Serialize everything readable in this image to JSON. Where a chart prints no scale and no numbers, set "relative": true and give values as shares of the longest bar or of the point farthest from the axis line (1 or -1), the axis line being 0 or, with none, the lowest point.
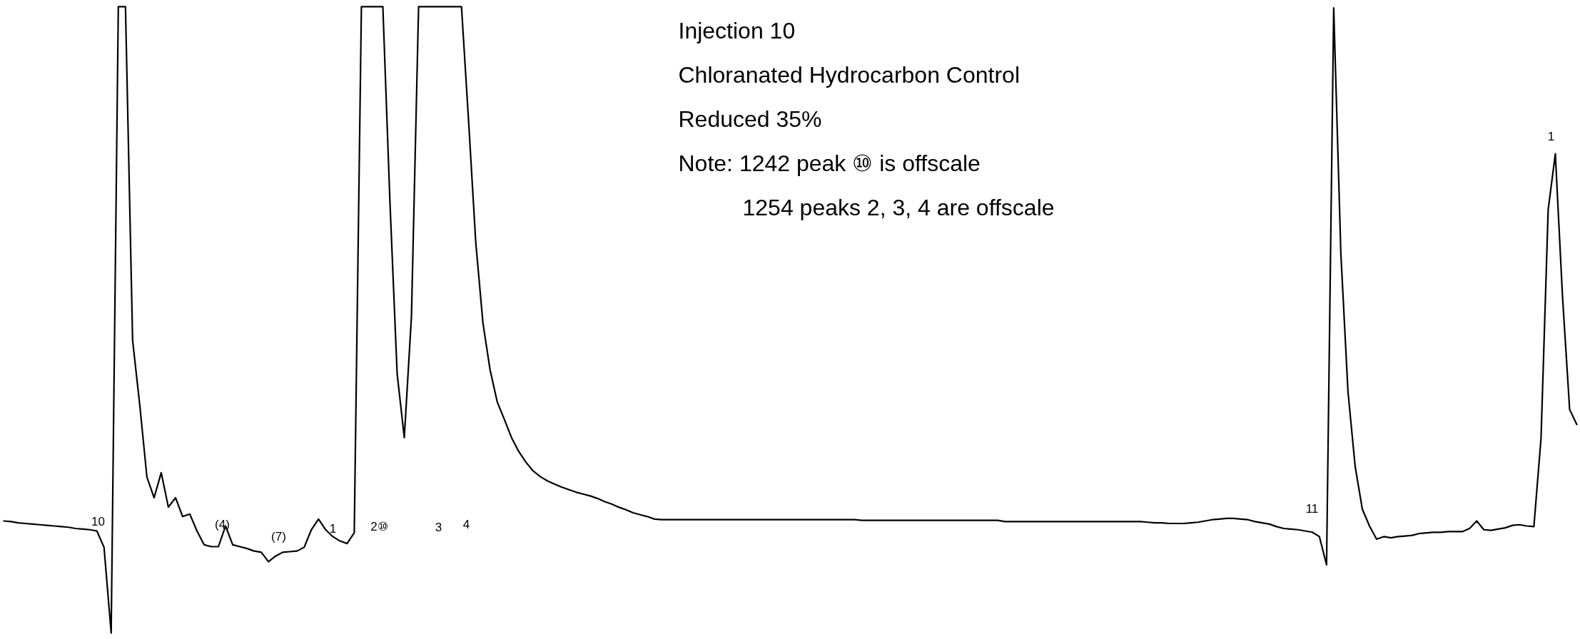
{
  "chart_data": {
    "type": "line",
    "relative": true,
    "title": "Injection 10",
    "subtitle": "Chloranated Hydrocarbon Control",
    "annotations": [
      "Reduced 35%",
      "Note: 1242 peak ⑩ is offscale",
      "1254 peaks 2, 3, 4 are offscale",
      "10",
      "(4)",
      "(7)",
      "1",
      "2⑩",
      "3",
      "4",
      "11",
      "1"
    ],
    "marker": "none",
    "line_style": "solid",
    "categories": [
      null,
      null,
      null,
      null,
      null,
      null,
      null,
      null,
      null,
      null,
      null,
      null,
      null,
      null,
      null,
      null,
      null,
      null,
      null,
      null,
      null,
      null,
      null,
      null,
      null,
      null,
      null,
      null,
      null,
      null,
      null,
      null,
      null,
      null,
      null,
      null,
      null,
      null,
      null,
      null,
      null,
      null,
      null,
      null,
      null,
      null,
      null,
      null,
      null,
      null,
      null,
      null,
      null,
      null,
      null,
      null,
      null,
      null,
      null,
      null,
      null,
      null,
      null,
      null,
      null,
      null,
      null,
      null,
      null,
      null,
      null,
      null,
      null,
      null,
      null,
      null,
      null,
      null,
      null,
      null,
      null,
      null,
      null,
      null,
      null,
      null,
      null,
      null,
      null,
      null,
      null,
      null,
      null,
      null,
      null,
      null,
      null,
      null,
      null,
      null,
      null,
      null,
      null,
      null,
      null,
      null,
      null,
      null,
      null,
      null,
      null,
      null,
      null,
      null,
      null,
      null,
      null,
      null,
      null,
      null,
      null,
      null,
      null,
      null,
      null,
      null,
      null,
      null,
      null,
      null,
      null,
      null,
      null,
      null,
      null,
      null,
      null,
      null,
      null,
      null,
      null,
      null,
      null,
      null,
      null,
      null,
      null,
      null,
      null,
      null,
      null,
      null,
      null,
      null,
      null,
      null,
      null,
      null,
      null,
      null,
      null,
      null,
      null,
      null,
      null,
      null,
      null,
      null,
      null,
      null,
      null,
      null,
      null,
      null,
      null,
      null,
      null,
      null,
      null,
      null,
      null,
      null,
      null,
      null,
      null,
      null,
      null,
      null,
      null,
      null,
      null,
      null,
      null,
      null,
      null,
      null,
      null,
      null,
      null,
      null,
      null,
      null,
      null,
      null,
      null,
      null,
      null,
      null,
      null,
      null,
      null,
      null,
      null,
      null,
      null,
      null,
      null,
      null,
      null,
      null,
      null
    ],
    "series": [
      {
        "color": "#000000",
        "values": [
          0.179,
          0.178,
          0.176,
          0.175,
          0.174,
          0.173,
          0.172,
          0.171,
          0.17,
          0.169,
          0.167,
          0.166,
          0.165,
          0.163,
          0.137,
          0,
          1,
          1,
          0.467,
          0.364,
          0.249,
          0.216,
          0.256,
          0.201,
          0.216,
          0.186,
          0.19,
          0.163,
          0.141,
          0.138,
          0.138,
          0.171,
          0.141,
          0.138,
          0.135,
          0.131,
          0.129,
          0.114,
          0.123,
          0.129,
          0.13,
          0.131,
          0.137,
          0.165,
          0.182,
          0.165,
          0.154,
          0.147,
          0.143,
          0.16,
          1,
          1,
          1,
          1,
          0.686,
          0.414,
          0.312,
          0.505,
          1,
          1,
          1,
          1,
          1,
          1,
          1,
          0.816,
          0.623,
          0.495,
          0.42,
          0.369,
          0.341,
          0.312,
          0.29,
          0.273,
          0.259,
          0.25,
          0.243,
          0.238,
          0.233,
          0.229,
          0.225,
          0.222,
          0.219,
          0.215,
          0.21,
          0.206,
          0.201,
          0.197,
          0.192,
          0.189,
          0.186,
          0.182,
          0.181,
          0.181,
          0.181,
          0.181,
          0.181,
          0.181,
          0.181,
          0.181,
          0.181,
          0.181,
          0.181,
          0.181,
          0.181,
          0.181,
          0.181,
          0.181,
          0.181,
          0.181,
          0.181,
          0.181,
          0.181,
          0.181,
          0.181,
          0.181,
          0.181,
          0.181,
          0.181,
          0.181,
          0.18,
          0.18,
          0.18,
          0.18,
          0.18,
          0.18,
          0.18,
          0.18,
          0.18,
          0.18,
          0.18,
          0.18,
          0.18,
          0.18,
          0.18,
          0.18,
          0.18,
          0.18,
          0.18,
          0.18,
          0.178,
          0.178,
          0.178,
          0.178,
          0.178,
          0.178,
          0.178,
          0.178,
          0.178,
          0.178,
          0.178,
          0.178,
          0.178,
          0.178,
          0.178,
          0.178,
          0.178,
          0.178,
          0.178,
          0.178,
          0.177,
          0.176,
          0.176,
          0.175,
          0.175,
          0.175,
          0.176,
          0.177,
          0.179,
          0.181,
          0.182,
          0.183,
          0.183,
          0.182,
          0.181,
          0.178,
          0.176,
          0.174,
          0.17,
          0.167,
          0.166,
          0.165,
          0.163,
          0.161,
          0.154,
          0.109,
          0.998,
          0.606,
          0.385,
          0.266,
          0.198,
          0.171,
          0.15,
          0.154,
          0.152,
          0.154,
          0.155,
          0.156,
          0.159,
          0.16,
          0.161,
          0.161,
          0.162,
          0.162,
          0.162,
          0.167,
          0.179,
          0.165,
          0.164,
          0.166,
          0.168,
          0.172,
          0.173,
          0.171,
          0.17,
          0.311,
          0.676,
          0.765,
          0.538,
          0.357,
          0.333
        ]
      }
    ]
  }
}
